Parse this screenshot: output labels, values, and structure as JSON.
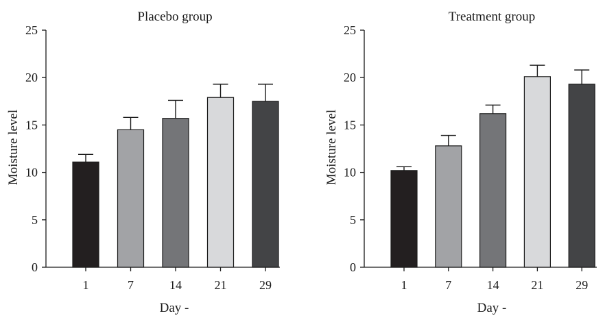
{
  "chart_data": [
    {
      "type": "bar",
      "title": "Placebo group",
      "xlabel": "Day -",
      "ylabel": "Moisture level",
      "ylim": [
        0,
        25
      ],
      "yticks": [
        "0",
        "5",
        "10",
        "15",
        "20",
        "25"
      ],
      "categories": [
        "1",
        "7",
        "14",
        "21",
        "29"
      ],
      "values": [
        11.1,
        14.5,
        15.7,
        17.9,
        17.5
      ],
      "errors": [
        0.8,
        1.3,
        1.9,
        1.4,
        1.8
      ],
      "colors": [
        "#231f20",
        "#a2a3a6",
        "#747578",
        "#d8d9db",
        "#434446"
      ],
      "grid": false,
      "error_bars": "upper"
    },
    {
      "type": "bar",
      "title": "Treatment group",
      "xlabel": "Day -",
      "ylabel": "Moisture level",
      "ylim": [
        0,
        25
      ],
      "yticks": [
        "0",
        "5",
        "10",
        "15",
        "20",
        "25"
      ],
      "categories": [
        "1",
        "7",
        "14",
        "21",
        "29"
      ],
      "values": [
        10.2,
        12.8,
        16.2,
        20.1,
        19.3
      ],
      "errors": [
        0.4,
        1.1,
        0.9,
        1.2,
        1.5
      ],
      "colors": [
        "#231f20",
        "#a2a3a6",
        "#747578",
        "#d8d9db",
        "#434446"
      ],
      "grid": false,
      "error_bars": "upper"
    }
  ]
}
